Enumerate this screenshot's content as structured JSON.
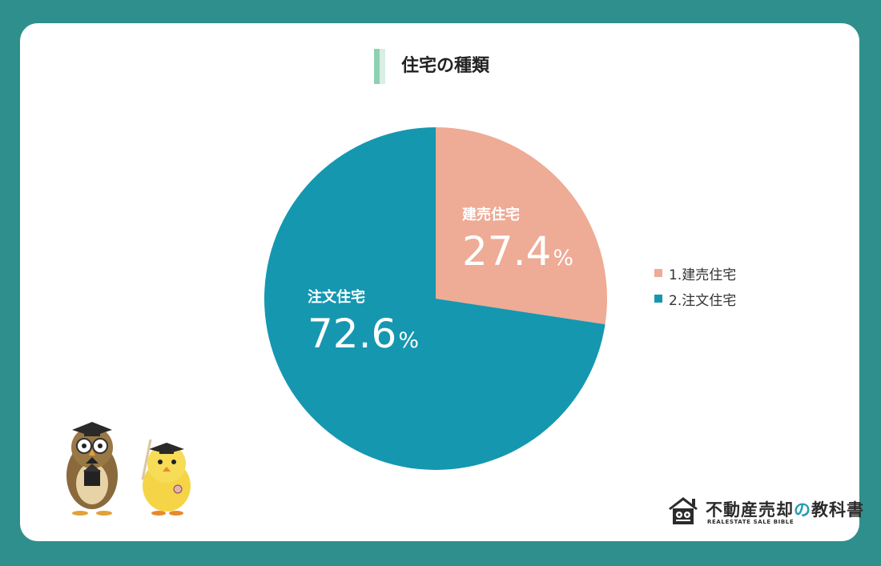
{
  "chart_data": {
    "type": "pie",
    "title": "住宅の種類",
    "slices": [
      {
        "label": "建売住宅",
        "value": 27.4,
        "percent_text": "27.4",
        "legend": "1.建売住宅",
        "color": "#eeab96"
      },
      {
        "label": "注文住宅",
        "value": 72.6,
        "percent_text": "72.6",
        "legend": "2.注文住宅",
        "color": "#1597b0"
      }
    ],
    "unit": "%",
    "legend_position": "right"
  },
  "brand": {
    "name_part1": "不動産売却",
    "name_no": "の",
    "name_part2": "教科書",
    "subtitle": "REALESTATE SALE BIBLE"
  },
  "colors": {
    "background": "#2f8f8c",
    "card": "#ffffff",
    "title_accent": "#8fd0b4"
  }
}
